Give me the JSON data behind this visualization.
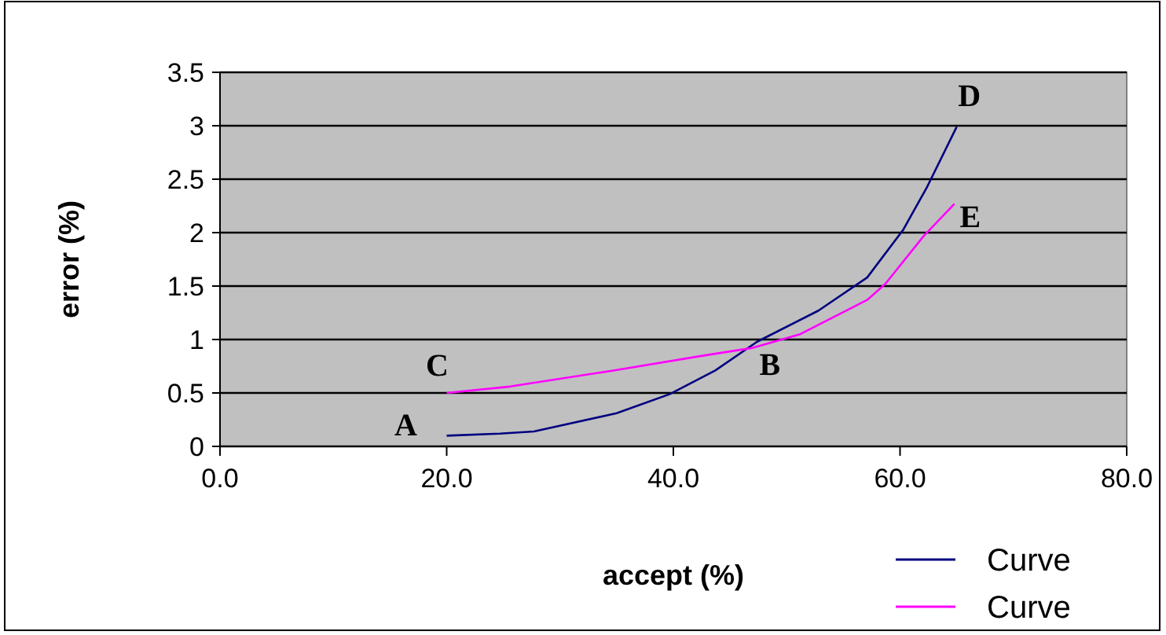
{
  "chart_data": {
    "type": "line",
    "xlabel": "accept (%)",
    "ylabel": "error (%)",
    "xlim": [
      0,
      80
    ],
    "xticks": [
      {
        "value": 0,
        "label": "0.0"
      },
      {
        "value": 20,
        "label": "20.0"
      },
      {
        "value": 40,
        "label": "40.0"
      },
      {
        "value": 60,
        "label": "60.0"
      },
      {
        "value": 80,
        "label": "80.0"
      }
    ],
    "ylim": [
      0,
      3.5
    ],
    "yticks": [
      0,
      0.5,
      1,
      1.5,
      2,
      2.5,
      3,
      3.5
    ],
    "grid": "y",
    "legend": "bottom right",
    "series": [
      {
        "name": "Curve",
        "color": "#000080",
        "x": [
          20,
          24.7,
          27.7,
          35,
          39.7,
          43.7,
          47.4,
          52.8,
          57.1,
          60.3,
          62.4,
          65
        ],
        "values": [
          0.1,
          0.12,
          0.14,
          0.31,
          0.49,
          0.71,
          0.98,
          1.27,
          1.58,
          2.03,
          2.43,
          2.99
        ]
      },
      {
        "name": "Curve",
        "color": "#ff00ff",
        "x": [
          20,
          25.6,
          34.7,
          42.7,
          46.9,
          51.2,
          57.1,
          58.7,
          62.1,
          64.8
        ],
        "values": [
          0.5,
          0.56,
          0.71,
          0.85,
          0.92,
          1.05,
          1.37,
          1.52,
          1.97,
          2.27
        ]
      }
    ],
    "annotations": [
      {
        "text": "A",
        "x": 20,
        "y": 0.1
      },
      {
        "text": "B",
        "x": 47.4,
        "y": 0.98
      },
      {
        "text": "C",
        "x": 20,
        "y": 0.5
      },
      {
        "text": "D",
        "x": 65,
        "y": 2.99
      },
      {
        "text": "E",
        "x": 64.8,
        "y": 2.27
      }
    ]
  }
}
